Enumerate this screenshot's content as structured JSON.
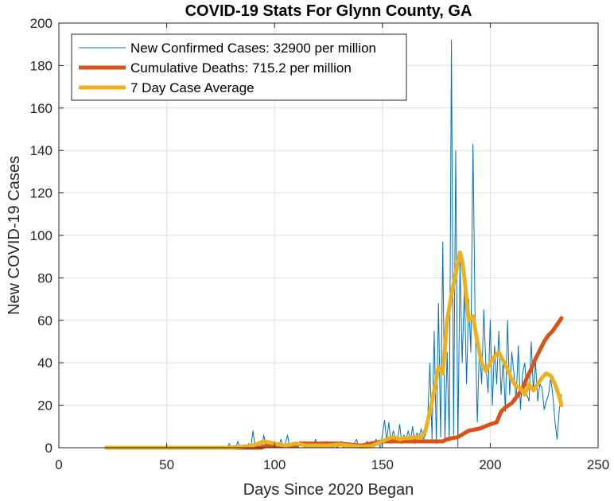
{
  "chart_data": {
    "type": "line",
    "title": "COVID-19 Stats For Glynn County, GA",
    "xlabel": "Days Since 2020 Began",
    "ylabel": "New COVID-19 Cases",
    "xlim": [
      0,
      250
    ],
    "ylim": [
      0,
      200
    ],
    "xticks": [
      "0",
      "50",
      "100",
      "150",
      "200",
      "250"
    ],
    "yticks": [
      "0",
      "20",
      "40",
      "60",
      "80",
      "100",
      "120",
      "140",
      "160",
      "180",
      "200"
    ],
    "grid": true,
    "legend_position": "top-left",
    "series": [
      {
        "name": "New Confirmed Cases: 32900 per million",
        "color": "#0072BD",
        "x": [
          22,
          40,
          60,
          78,
          79,
          80,
          81,
          82,
          83,
          84,
          85,
          86,
          87,
          88,
          89,
          90,
          91,
          92,
          93,
          94,
          95,
          96,
          97,
          98,
          99,
          100,
          101,
          102,
          103,
          104,
          105,
          106,
          107,
          108,
          109,
          110,
          111,
          112,
          113,
          114,
          115,
          116,
          117,
          118,
          119,
          120,
          121,
          122,
          123,
          124,
          125,
          126,
          127,
          128,
          129,
          130,
          131,
          132,
          133,
          134,
          135,
          136,
          137,
          138,
          139,
          140,
          141,
          142,
          143,
          144,
          145,
          146,
          147,
          148,
          149,
          150,
          151,
          152,
          153,
          154,
          155,
          156,
          157,
          158,
          159,
          160,
          161,
          162,
          163,
          164,
          165,
          166,
          167,
          168,
          169,
          170,
          171,
          172,
          173,
          174,
          175,
          176,
          177,
          178,
          179,
          180,
          181,
          182,
          183,
          184,
          185,
          186,
          187,
          188,
          189,
          190,
          191,
          192,
          193,
          194,
          195,
          196,
          197,
          198,
          199,
          200,
          201,
          202,
          203,
          204,
          205,
          206,
          207,
          208,
          209,
          210,
          211,
          212,
          213,
          214,
          215,
          216,
          217,
          218,
          219,
          220,
          221,
          222,
          223,
          224,
          225,
          226,
          227,
          228,
          229,
          230,
          231,
          232,
          233
        ],
        "values": [
          0,
          0,
          0,
          0,
          2,
          0,
          1,
          0,
          3,
          0,
          1,
          0,
          0,
          2,
          0,
          8,
          0,
          1,
          3,
          0,
          6,
          1,
          0,
          2,
          0,
          3,
          0,
          1,
          4,
          0,
          2,
          6,
          0,
          1,
          0,
          2,
          0,
          3,
          1,
          0,
          2,
          0,
          1,
          0,
          4,
          0,
          1,
          2,
          0,
          3,
          0,
          1,
          0,
          2,
          0,
          1,
          3,
          0,
          2,
          0,
          1,
          0,
          2,
          4,
          0,
          1,
          0,
          2,
          3,
          0,
          1,
          0,
          4,
          2,
          0,
          6,
          13,
          3,
          12,
          2,
          8,
          5,
          3,
          11,
          2,
          6,
          4,
          8,
          3,
          10,
          2,
          7,
          5,
          9,
          4,
          6,
          14,
          40,
          4,
          55,
          2,
          68,
          5,
          97,
          4,
          45,
          3,
          192,
          6,
          140,
          0,
          88,
          40,
          76,
          30,
          70,
          45,
          143,
          60,
          12,
          48,
          30,
          65,
          38,
          26,
          60,
          20,
          48,
          30,
          55,
          25,
          42,
          17,
          60,
          25,
          45,
          35,
          22,
          48,
          18,
          35,
          40,
          25,
          22,
          50,
          27,
          40,
          22,
          30,
          28,
          18,
          22,
          25,
          33,
          25,
          12,
          4,
          18,
          25
        ]
      },
      {
        "name": "Cumulative Deaths: 715.2 per million",
        "color": "#D95319",
        "x": [
          22,
          80,
          94,
          96,
          99,
          110,
          112,
          130,
          140,
          150,
          160,
          170,
          172,
          178,
          180,
          185,
          190,
          195,
          200,
          203,
          205,
          207,
          210,
          213,
          215,
          217,
          219,
          221,
          223,
          225,
          227,
          229,
          231,
          233
        ],
        "values": [
          0,
          0,
          0,
          1,
          1,
          1,
          2,
          2,
          1,
          3,
          3,
          3,
          3,
          3,
          4,
          5,
          8,
          9,
          11,
          12,
          17,
          19,
          21,
          25,
          28,
          33,
          37,
          42,
          46,
          50,
          53,
          55,
          58,
          61
        ]
      },
      {
        "name": "7 Day Case Average",
        "color": "#EDB120",
        "x": [
          22,
          60,
          80,
          85,
          90,
          95,
          100,
          105,
          110,
          115,
          120,
          125,
          130,
          135,
          140,
          145,
          150,
          152,
          155,
          158,
          160,
          163,
          165,
          168,
          170,
          172,
          174,
          176,
          178,
          180,
          182,
          184,
          186,
          187,
          188,
          190,
          192,
          194,
          196,
          198,
          200,
          202,
          204,
          206,
          208,
          210,
          212,
          214,
          216,
          218,
          220,
          222,
          224,
          226,
          228,
          230,
          232,
          233
        ],
        "values": [
          0,
          0,
          0,
          0.5,
          1,
          3,
          2,
          1,
          2,
          1,
          1,
          1,
          1.5,
          1,
          0.5,
          0.8,
          3,
          4,
          5,
          4,
          4.5,
          4.5,
          5,
          5,
          8,
          17,
          27,
          38,
          35,
          60,
          72,
          82,
          92,
          88,
          80,
          60,
          62,
          50,
          40,
          36,
          40,
          43,
          45,
          41,
          37,
          32,
          29,
          28,
          25,
          30,
          27,
          30,
          33,
          35,
          34,
          30,
          24,
          20
        ]
      }
    ]
  }
}
